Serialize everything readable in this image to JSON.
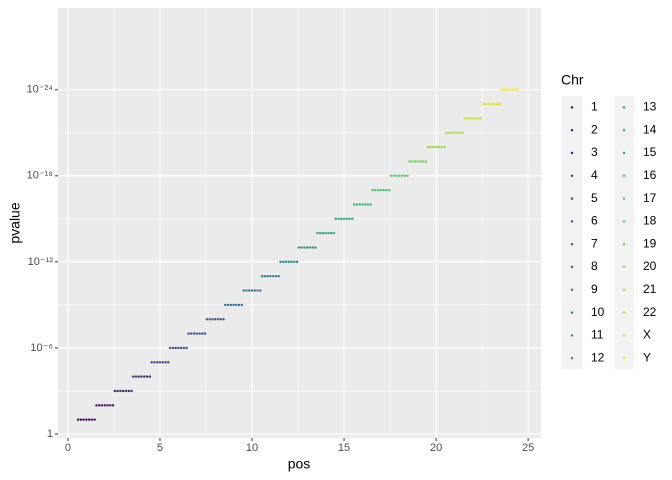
{
  "chart_data": {
    "type": "scatter",
    "x_label": "pos",
    "y_label": "pvalue",
    "legend_title": "Chr",
    "log_y": true,
    "reverse_y": true,
    "grid": true,
    "legend_position": "right",
    "xlim": [
      -0.54,
      25.7
    ],
    "xticks": [
      0,
      5,
      10,
      15,
      20,
      25
    ],
    "ylim": [
      1.9,
      2e-30
    ],
    "yticks": [
      1,
      {
        "value": 1e-06,
        "label": "10⁻⁶"
      },
      {
        "value": 1e-12,
        "label": "10⁻¹²"
      },
      {
        "value": 1e-18,
        "label": "10⁻¹⁸"
      },
      {
        "value": 1e-24,
        "label": "10⁻²⁴"
      }
    ],
    "series": [
      {
        "name": "1",
        "color": "#440154",
        "x": [
          0.55,
          0.7,
          0.85,
          1,
          1.15,
          1.3,
          1.45
        ],
        "values": [
          0.1,
          0.1,
          0.1,
          0.1,
          0.1,
          0.1,
          0.1
        ]
      },
      {
        "name": "2",
        "color": "#471164",
        "x": [
          1.55,
          1.7,
          1.85,
          2,
          2.15,
          2.3,
          2.45
        ],
        "values": [
          0.01,
          0.01,
          0.01,
          0.01,
          0.01,
          0.01,
          0.01
        ]
      },
      {
        "name": "3",
        "color": "#481F70",
        "x": [
          2.55,
          2.7,
          2.85,
          3,
          3.15,
          3.3,
          3.45
        ],
        "values": [
          0.001,
          0.001,
          0.001,
          0.001,
          0.001,
          0.001,
          0.001
        ]
      },
      {
        "name": "4",
        "color": "#472D7B",
        "x": [
          3.55,
          3.7,
          3.85,
          4,
          4.15,
          4.3,
          4.45
        ],
        "values": [
          0.0001,
          0.0001,
          0.0001,
          0.0001,
          0.0001,
          0.0001,
          0.0001
        ]
      },
      {
        "name": "5",
        "color": "#443A83",
        "x": [
          4.55,
          4.7,
          4.85,
          5,
          5.15,
          5.3,
          5.45
        ],
        "values": [
          1e-05,
          1e-05,
          1e-05,
          1e-05,
          1e-05,
          1e-05,
          1e-05
        ]
      },
      {
        "name": "6",
        "color": "#404688",
        "x": [
          5.55,
          5.7,
          5.85,
          6,
          6.15,
          6.3,
          6.45
        ],
        "values": [
          1e-06,
          1e-06,
          1e-06,
          1e-06,
          1e-06,
          1e-06,
          1e-06
        ]
      },
      {
        "name": "7",
        "color": "#3B528B",
        "x": [
          6.55,
          6.7,
          6.85,
          7,
          7.15,
          7.3,
          7.45
        ],
        "values": [
          1e-07,
          1e-07,
          1e-07,
          1e-07,
          1e-07,
          1e-07,
          1e-07
        ]
      },
      {
        "name": "8",
        "color": "#365D8D",
        "x": [
          7.55,
          7.7,
          7.85,
          8,
          8.15,
          8.3,
          8.45
        ],
        "values": [
          1e-08,
          1e-08,
          1e-08,
          1e-08,
          1e-08,
          1e-08,
          1e-08
        ]
      },
      {
        "name": "9",
        "color": "#31688E",
        "x": [
          8.55,
          8.7,
          8.85,
          9,
          9.15,
          9.3,
          9.45
        ],
        "values": [
          1e-09,
          1e-09,
          1e-09,
          1e-09,
          1e-09,
          1e-09,
          1e-09
        ]
      },
      {
        "name": "10",
        "color": "#2C728E",
        "x": [
          9.55,
          9.7,
          9.85,
          10,
          10.15,
          10.3,
          10.45
        ],
        "values": [
          1e-10,
          1e-10,
          1e-10,
          1e-10,
          1e-10,
          1e-10,
          1e-10
        ]
      },
      {
        "name": "11",
        "color": "#287C8E",
        "x": [
          10.55,
          10.7,
          10.85,
          11,
          11.15,
          11.3,
          11.45
        ],
        "values": [
          1e-11,
          1e-11,
          1e-11,
          1e-11,
          1e-11,
          1e-11,
          1e-11
        ]
      },
      {
        "name": "12",
        "color": "#24868E",
        "x": [
          11.55,
          11.7,
          11.85,
          12,
          12.15,
          12.3,
          12.45
        ],
        "values": [
          1e-12,
          1e-12,
          1e-12,
          1e-12,
          1e-12,
          1e-12,
          1e-12
        ]
      },
      {
        "name": "13",
        "color": "#21908C",
        "x": [
          12.55,
          12.7,
          12.85,
          13,
          13.15,
          13.3,
          13.45
        ],
        "values": [
          1e-13,
          1e-13,
          1e-13,
          1e-13,
          1e-13,
          1e-13,
          1e-13
        ]
      },
      {
        "name": "14",
        "color": "#20A486",
        "x": [
          13.55,
          13.7,
          13.85,
          14,
          14.15,
          14.3,
          14.45
        ],
        "values": [
          1e-14,
          1e-14,
          1e-14,
          1e-14,
          1e-14,
          1e-14,
          1e-14
        ]
      },
      {
        "name": "15",
        "color": "#27AD81",
        "x": [
          14.55,
          14.7,
          14.85,
          15,
          15.15,
          15.3,
          15.45
        ],
        "values": [
          1e-15,
          1e-15,
          1e-15,
          1e-15,
          1e-15,
          1e-15,
          1e-15
        ]
      },
      {
        "name": "16",
        "color": "#35B779",
        "x": [
          15.55,
          15.7,
          15.85,
          16,
          16.15,
          16.3,
          16.45
        ],
        "values": [
          1e-16,
          1e-16,
          1e-16,
          1e-16,
          1e-16,
          1e-16,
          1e-16
        ]
      },
      {
        "name": "17",
        "color": "#47C16E",
        "x": [
          16.55,
          16.7,
          16.85,
          17,
          17.15,
          17.3,
          17.45
        ],
        "values": [
          1e-17,
          1e-17,
          1e-17,
          1e-17,
          1e-17,
          1e-17,
          1e-17
        ]
      },
      {
        "name": "18",
        "color": "#5DC863",
        "x": [
          17.55,
          17.7,
          17.85,
          18,
          18.15,
          18.3,
          18.45
        ],
        "values": [
          1e-18,
          1e-18,
          1e-18,
          1e-18,
          1e-18,
          1e-18,
          1e-18
        ]
      },
      {
        "name": "19",
        "color": "#75D054",
        "x": [
          18.55,
          18.7,
          18.85,
          19,
          19.15,
          19.3,
          19.45
        ],
        "values": [
          1e-19,
          1e-19,
          1e-19,
          1e-19,
          1e-19,
          1e-19,
          1e-19
        ]
      },
      {
        "name": "20",
        "color": "#8FD744",
        "x": [
          19.55,
          19.7,
          19.85,
          20,
          20.15,
          20.3,
          20.45
        ],
        "values": [
          1e-20,
          1e-20,
          1e-20,
          1e-20,
          1e-20,
          1e-20,
          1e-20
        ]
      },
      {
        "name": "21",
        "color": "#AADC32",
        "x": [
          20.55,
          20.7,
          20.85,
          21,
          21.15,
          21.3,
          21.45
        ],
        "values": [
          1e-21,
          1e-21,
          1e-21,
          1e-21,
          1e-21,
          1e-21,
          1e-21
        ]
      },
      {
        "name": "22",
        "color": "#C7E020",
        "x": [
          21.55,
          21.7,
          21.85,
          22,
          22.15,
          22.3,
          22.45
        ],
        "values": [
          1e-22,
          1e-22,
          1e-22,
          1e-22,
          1e-22,
          1e-22,
          1e-22
        ]
      },
      {
        "name": "X",
        "color": "#E3E418",
        "x": [
          22.55,
          22.7,
          22.85,
          23,
          23.15,
          23.3,
          23.45
        ],
        "values": [
          1e-23,
          1e-23,
          1e-23,
          1e-23,
          1e-23,
          1e-23,
          1e-23
        ]
      },
      {
        "name": "Y",
        "color": "#FDE725",
        "x": [
          23.55,
          23.7,
          23.85,
          24,
          24.15,
          24.3,
          24.45
        ],
        "values": [
          1e-24,
          1e-24,
          1e-24,
          1e-24,
          1e-24,
          1e-24,
          1e-24
        ]
      }
    ]
  }
}
